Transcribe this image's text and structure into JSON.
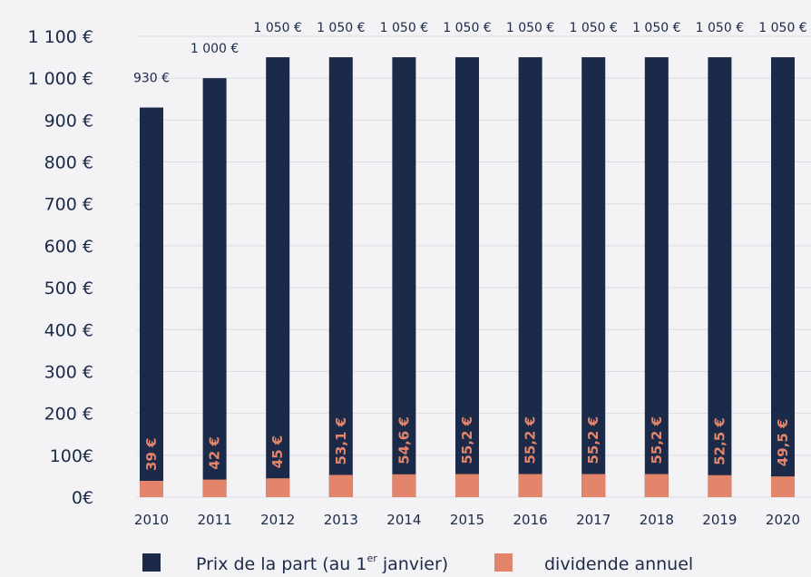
{
  "colors": {
    "background": "#f3f3f5",
    "price_bar": "#1c2a4a",
    "dividend_bar": "#e3856a",
    "text": "#1c2a4a",
    "grid": "#dcdce2"
  },
  "chart_data": {
    "type": "bar",
    "categories": [
      "2010",
      "2011",
      "2012",
      "2013",
      "2014",
      "2015",
      "2016",
      "2017",
      "2018",
      "2019",
      "2020"
    ],
    "ylim": [
      0,
      1100
    ],
    "grid": true,
    "legend_position": "bottom",
    "y_tick_labels": [
      "0€",
      "100€",
      "200 €",
      "300 €",
      "400 €",
      "500 €",
      "600 €",
      "700 €",
      "800 €",
      "900 €",
      "1 000 €",
      "1 100 €"
    ],
    "y_tick_values": [
      0,
      100,
      200,
      300,
      400,
      500,
      600,
      700,
      800,
      900,
      1000,
      1100
    ],
    "series": [
      {
        "name": "Prix de la part (au 1er janvier)",
        "values": [
          930,
          1000,
          1050,
          1050,
          1050,
          1050,
          1050,
          1050,
          1050,
          1050,
          1050
        ],
        "labels": [
          "930 €",
          "1 000 €",
          "1 050 €",
          "1 050 €",
          "1 050 €",
          "1 050 €",
          "1 050 €",
          "1 050 €",
          "1 050 €",
          "1 050 €",
          "1 050 €"
        ]
      },
      {
        "name": "dividende annuel",
        "values": [
          39,
          42,
          45,
          53.1,
          54.6,
          55.2,
          55.2,
          55.2,
          55.2,
          52.5,
          49.5
        ],
        "labels": [
          "39 €",
          "42 €",
          "45 €",
          "53,1 €",
          "54,6 €",
          "55,2 €",
          "55,2 €",
          "55,2 €",
          "55,2 €",
          "52,5 €",
          "49,5 €"
        ]
      }
    ],
    "legend": {
      "price_text_main": "Prix de  la part (au 1",
      "price_text_sup": "er",
      "price_text_end": " janvier)",
      "dividend_text": "dividende annuel"
    }
  }
}
